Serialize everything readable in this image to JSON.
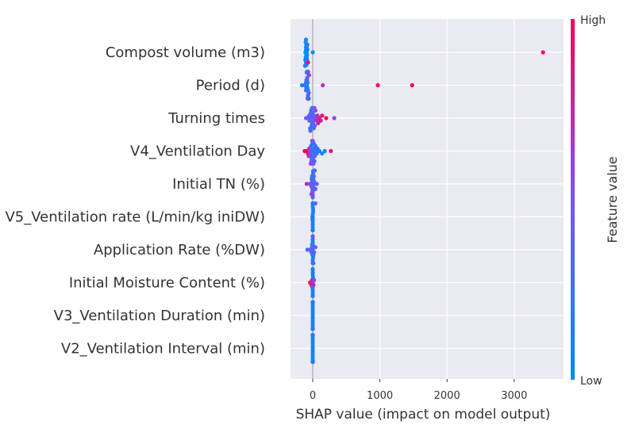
{
  "chart_data": {
    "type": "scatter",
    "subtype": "shap-beeswarm",
    "xlabel": "SHAP value (impact on model output)",
    "xlim": [
      -320,
      3560
    ],
    "xticks": [
      0,
      1000,
      2000,
      3000
    ],
    "xtick_labels": [
      "0",
      "1000",
      "2000",
      "3000"
    ],
    "grid": true,
    "colorbar": {
      "title": "Feature value",
      "high_label": "High",
      "low_label": "Low",
      "low_color": "#008bfb",
      "high_color": "#ff0052"
    },
    "colors": {
      "low": "#008bfb",
      "high": "#ff0052",
      "plot_bg": "#eaeaf2",
      "zero_line": "#999999"
    },
    "features": [
      {
        "name": "Compost volume (m3)",
        "points": [
          [
            -110,
            0.0
          ],
          [
            -95,
            0.0
          ],
          [
            -90,
            0.0
          ],
          [
            -100,
            0.0
          ],
          [
            -105,
            0.0
          ],
          [
            -85,
            0.0
          ],
          [
            -80,
            0.0
          ],
          [
            -100,
            0.0
          ],
          [
            -110,
            0.0
          ],
          [
            -90,
            0.0
          ],
          [
            -95,
            0.1
          ],
          [
            -100,
            0.1
          ],
          [
            -105,
            0.2
          ],
          [
            -90,
            0.1
          ],
          [
            -85,
            0.1
          ],
          [
            -95,
            0.2
          ],
          [
            -100,
            0.0
          ],
          [
            -115,
            0.1
          ],
          [
            -80,
            0.1
          ],
          [
            -70,
            0.9
          ],
          [
            0,
            0.0
          ],
          [
            3430,
            1.0
          ]
        ]
      },
      {
        "name": "Period (d)",
        "points": [
          [
            -160,
            0.1
          ],
          [
            -120,
            0.2
          ],
          [
            -90,
            0.2
          ],
          [
            -80,
            0.1
          ],
          [
            -75,
            0.2
          ],
          [
            -70,
            0.1
          ],
          [
            -95,
            0.1
          ],
          [
            -85,
            0.2
          ],
          [
            -100,
            0.1
          ],
          [
            -60,
            0.4
          ],
          [
            -80,
            0.3
          ],
          [
            -70,
            0.3
          ],
          [
            -55,
            0.6
          ],
          [
            -75,
            0.2
          ],
          [
            -90,
            0.3
          ],
          [
            -65,
            0.5
          ],
          [
            -70,
            0.9
          ],
          [
            -60,
            0.7
          ],
          [
            -85,
            0.5
          ],
          [
            -75,
            0.6
          ],
          [
            -100,
            0.2
          ],
          [
            -95,
            0.3
          ],
          [
            -80,
            0.2
          ],
          [
            -60,
            0.2
          ],
          [
            150,
            0.7
          ],
          [
            970,
            1.0
          ],
          [
            1480,
            1.0
          ]
        ]
      },
      {
        "name": "Turning times",
        "points": [
          [
            -100,
            0.4
          ],
          [
            -60,
            0.4
          ],
          [
            -40,
            0.3
          ],
          [
            -30,
            0.3
          ],
          [
            -20,
            0.2
          ],
          [
            -10,
            0.3
          ],
          [
            0,
            0.4
          ],
          [
            10,
            0.3
          ],
          [
            20,
            0.4
          ],
          [
            -30,
            0.4
          ],
          [
            -50,
            0.5
          ],
          [
            -15,
            0.2
          ],
          [
            5,
            0.2
          ],
          [
            -25,
            0.3
          ],
          [
            -40,
            0.2
          ],
          [
            0,
            0.3
          ],
          [
            30,
            0.5
          ],
          [
            40,
            0.6
          ],
          [
            50,
            0.6
          ],
          [
            60,
            0.7
          ],
          [
            70,
            0.7
          ],
          [
            80,
            0.8
          ],
          [
            100,
            0.8
          ],
          [
            120,
            0.8
          ],
          [
            140,
            0.9
          ],
          [
            200,
            1.0
          ],
          [
            320,
            0.6
          ],
          [
            -10,
            0.2
          ],
          [
            -35,
            0.3
          ],
          [
            15,
            0.3
          ],
          [
            25,
            0.4
          ],
          [
            -55,
            0.4
          ]
        ]
      },
      {
        "name": "V4_Ventilation Day",
        "points": [
          [
            -120,
            1.0
          ],
          [
            -90,
            1.0
          ],
          [
            -70,
            0.9
          ],
          [
            -50,
            0.8
          ],
          [
            -40,
            0.6
          ],
          [
            -30,
            0.4
          ],
          [
            -20,
            0.3
          ],
          [
            -10,
            0.2
          ],
          [
            0,
            0.2
          ],
          [
            10,
            0.3
          ],
          [
            20,
            0.3
          ],
          [
            30,
            0.4
          ],
          [
            40,
            0.3
          ],
          [
            -25,
            0.2
          ],
          [
            -15,
            0.3
          ],
          [
            5,
            0.2
          ],
          [
            -5,
            0.3
          ],
          [
            15,
            0.2
          ],
          [
            25,
            0.3
          ],
          [
            0,
            0.4
          ],
          [
            -20,
            0.4
          ],
          [
            -10,
            0.5
          ],
          [
            10,
            0.5
          ],
          [
            -30,
            0.5
          ],
          [
            50,
            0.3
          ],
          [
            60,
            0.2
          ],
          [
            70,
            0.1
          ],
          [
            100,
            0.1
          ],
          [
            140,
            0.0
          ],
          [
            180,
            0.0
          ],
          [
            270,
            0.9
          ],
          [
            -60,
            0.7
          ]
        ]
      },
      {
        "name": "Initial TN (%)",
        "points": [
          [
            -90,
            0.7
          ],
          [
            -40,
            0.6
          ],
          [
            -20,
            0.5
          ],
          [
            -10,
            0.4
          ],
          [
            0,
            0.3
          ],
          [
            10,
            0.3
          ],
          [
            20,
            0.5
          ],
          [
            40,
            0.4
          ],
          [
            60,
            0.3
          ],
          [
            -5,
            0.4
          ],
          [
            5,
            0.3
          ],
          [
            0,
            0.2
          ],
          [
            -15,
            0.2
          ],
          [
            15,
            0.3
          ],
          [
            -5,
            0.5
          ],
          [
            0,
            0.6
          ],
          [
            5,
            0.4
          ],
          [
            -10,
            0.2
          ],
          [
            0,
            0.1
          ],
          [
            5,
            0.1
          ],
          [
            0,
            0.3
          ],
          [
            -20,
            0.6
          ],
          [
            30,
            0.3
          ]
        ]
      },
      {
        "name": "V5_Ventilation rate (L/min/kg iniDW)",
        "points": [
          [
            0,
            0.1
          ],
          [
            0,
            0.1
          ],
          [
            0,
            0.1
          ],
          [
            0,
            0.1
          ],
          [
            5,
            0.1
          ],
          [
            -5,
            0.1
          ],
          [
            0,
            0.1
          ],
          [
            5,
            0.1
          ],
          [
            -5,
            0.1
          ],
          [
            0,
            0.1
          ],
          [
            0,
            0.1
          ],
          [
            0,
            0.1
          ],
          [
            0,
            0.1
          ],
          [
            0,
            0.1
          ],
          [
            0,
            0.1
          ],
          [
            0,
            0.1
          ],
          [
            40,
            0.5
          ],
          [
            0,
            0.6
          ],
          [
            0,
            0.1
          ],
          [
            0,
            0.1
          ]
        ]
      },
      {
        "name": "Application Rate (%DW)",
        "points": [
          [
            -80,
            0.3
          ],
          [
            -40,
            0.3
          ],
          [
            -20,
            0.5
          ],
          [
            0,
            0.4
          ],
          [
            20,
            0.4
          ],
          [
            40,
            0.3
          ],
          [
            -10,
            0.2
          ],
          [
            10,
            0.2
          ],
          [
            0,
            0.2
          ],
          [
            -5,
            0.1
          ],
          [
            5,
            0.1
          ],
          [
            0,
            0.1
          ],
          [
            0,
            0.1
          ],
          [
            0,
            0.1
          ],
          [
            0,
            0.1
          ],
          [
            0,
            0.5
          ],
          [
            -10,
            0.3
          ],
          [
            10,
            0.3
          ],
          [
            0,
            0.3
          ],
          [
            0,
            0.2
          ]
        ]
      },
      {
        "name": "Initial Moisture Content (%)",
        "points": [
          [
            -40,
            1.0
          ],
          [
            -20,
            0.8
          ],
          [
            -10,
            0.7
          ],
          [
            0,
            0.7
          ],
          [
            10,
            0.8
          ],
          [
            20,
            0.6
          ],
          [
            0,
            0.3
          ],
          [
            -5,
            0.2
          ],
          [
            5,
            0.2
          ],
          [
            0,
            0.1
          ],
          [
            0,
            0.1
          ],
          [
            0,
            0.1
          ],
          [
            0,
            0.1
          ],
          [
            0,
            0.1
          ],
          [
            0,
            0.1
          ],
          [
            0,
            0.1
          ],
          [
            0,
            0.1
          ],
          [
            0,
            0.1
          ],
          [
            0,
            0.1
          ],
          [
            0,
            0.1
          ]
        ]
      },
      {
        "name": "V3_Ventilation Duration (min)",
        "points": [
          [
            0,
            0.1
          ],
          [
            0,
            0.1
          ],
          [
            0,
            0.1
          ],
          [
            0,
            0.1
          ],
          [
            0,
            0.1
          ],
          [
            0,
            0.1
          ],
          [
            0,
            0.1
          ],
          [
            0,
            0.1
          ],
          [
            0,
            0.1
          ],
          [
            0,
            0.1
          ],
          [
            0,
            0.1
          ],
          [
            0,
            0.1
          ],
          [
            0,
            0.1
          ],
          [
            0,
            0.1
          ],
          [
            0,
            0.1
          ],
          [
            0,
            0.1
          ],
          [
            0,
            0.9
          ],
          [
            0,
            0.1
          ],
          [
            0,
            0.1
          ],
          [
            0,
            0.1
          ]
        ]
      },
      {
        "name": "V2_Ventilation Interval (min)",
        "points": [
          [
            0,
            0.1
          ],
          [
            0,
            0.1
          ],
          [
            0,
            0.1
          ],
          [
            0,
            0.1
          ],
          [
            0,
            0.1
          ],
          [
            0,
            0.1
          ],
          [
            0,
            0.1
          ],
          [
            0,
            0.1
          ],
          [
            0,
            0.1
          ],
          [
            0,
            0.1
          ],
          [
            0,
            0.1
          ],
          [
            0,
            0.1
          ],
          [
            0,
            0.1
          ],
          [
            0,
            0.1
          ],
          [
            0,
            0.1
          ],
          [
            0,
            0.1
          ],
          [
            0,
            0.1
          ],
          [
            0,
            0.1
          ],
          [
            0,
            0.1
          ],
          [
            0,
            0.1
          ]
        ]
      }
    ]
  }
}
